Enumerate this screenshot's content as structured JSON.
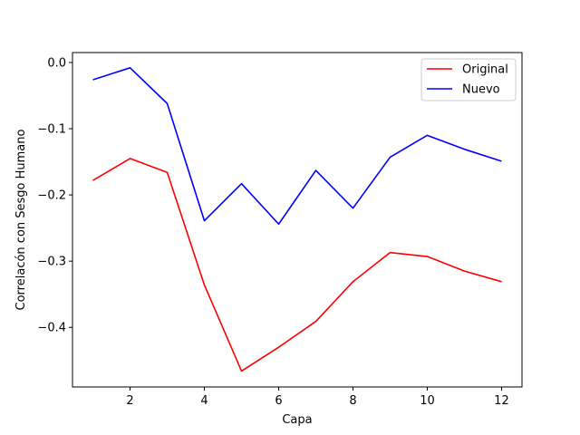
{
  "chart_data": {
    "type": "line",
    "xlabel": "Capa",
    "ylabel": "Correlacón con Sesgo Humano",
    "x": [
      1,
      2,
      3,
      4,
      5,
      6,
      7,
      8,
      9,
      10,
      11,
      12
    ],
    "xlim": [
      0.45,
      12.55
    ],
    "ylim": [
      -0.49,
      0.015
    ],
    "xticks": [
      2,
      4,
      6,
      8,
      10,
      12
    ],
    "xtick_labels": [
      "2",
      "4",
      "6",
      "8",
      "10",
      "12"
    ],
    "yticks": [
      0.0,
      -0.1,
      -0.2,
      -0.3,
      -0.4
    ],
    "ytick_labels": [
      "0.0",
      "−0.1",
      "−0.2",
      "−0.3",
      "−0.4"
    ],
    "grid": false,
    "legend": "top-right",
    "series": [
      {
        "name": "Original",
        "color": "#ff0000",
        "values": [
          -0.178,
          -0.145,
          -0.166,
          -0.336,
          -0.466,
          -0.43,
          -0.391,
          -0.331,
          -0.287,
          -0.293,
          -0.315,
          -0.331
        ]
      },
      {
        "name": "Nuevo",
        "color": "#0000ff",
        "values": [
          -0.026,
          -0.008,
          -0.062,
          -0.239,
          -0.183,
          -0.244,
          -0.163,
          -0.22,
          -0.143,
          -0.11,
          -0.131,
          -0.149
        ]
      }
    ]
  }
}
